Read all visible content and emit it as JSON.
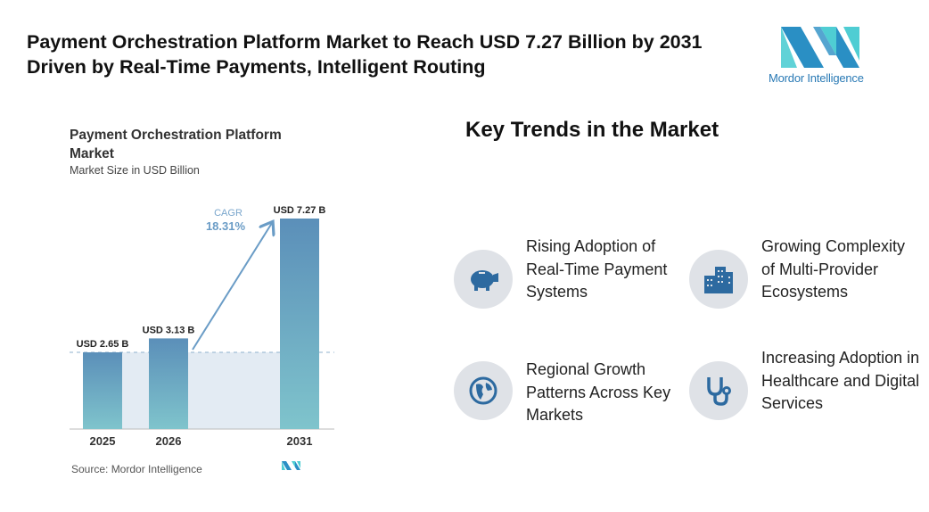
{
  "header": {
    "title": "Payment Orchestration Platform Market to Reach USD 7.27 Billion by 2031 Driven by Real-Time Payments, Intelligent Routing",
    "logo_text": "Mordor Intelligence"
  },
  "chart_data": {
    "type": "bar",
    "title": "Payment Orchestration Platform Market",
    "subtitle": "Market Size in USD Billion",
    "categories": [
      "2025",
      "2026",
      "2031"
    ],
    "values": [
      2.65,
      3.13,
      7.27
    ],
    "data_labels": [
      "USD 2.65 B",
      "USD 3.13 B",
      "USD 7.27 B"
    ],
    "annotation": {
      "label": "CAGR",
      "value": "18.31%"
    },
    "source": "Source: Mordor Intelligence",
    "colors": {
      "bar_top": "#5b8fb9",
      "bar_bottom": "#7fc4cc",
      "accent": "#6a9cc6"
    }
  },
  "trends": {
    "title": "Key Trends in the Market",
    "items": [
      {
        "label": "Rising Adoption of Real-Time Payment Systems",
        "icon": "piggy-bank-icon"
      },
      {
        "label": "Growing Complexity of Multi-Provider Ecosystems",
        "icon": "buildings-icon"
      },
      {
        "label": "Regional Growth Patterns Across Key Markets",
        "icon": "globe-icon"
      },
      {
        "label": "Increasing Adoption in Healthcare and Digital Services",
        "icon": "stethoscope-icon"
      }
    ],
    "icon_color": "#2d6aa0"
  }
}
